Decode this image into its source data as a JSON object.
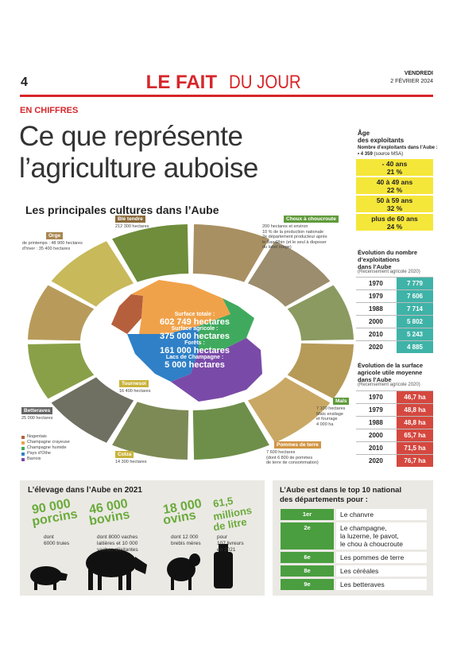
{
  "header": {
    "page_number": "4",
    "title_bold": "LE FAIT",
    "title_light": "DU JOUR",
    "day": "VENDREDI",
    "date": "2 FÉVRIER 2024"
  },
  "kicker": "EN CHIFFRES",
  "headline": [
    "Ce que représente",
    "l’agriculture auboise"
  ],
  "map_section": {
    "title": "Les principales cultures dans l’Aube",
    "center": [
      {
        "label": "Surface totale :",
        "value": "602 749 hectares"
      },
      {
        "label": "Surface agricole :",
        "value": "375 000 hectares"
      },
      {
        "label": "Forêts :",
        "value": "161 000 hectares"
      },
      {
        "label": "Lacs de Champagne :",
        "value": "5 000 hectares"
      }
    ],
    "crops": [
      {
        "name": "Blé tendre",
        "detail": [
          "212 300 hectares"
        ]
      },
      {
        "name": "Orge",
        "detail": [
          "de printemps : 48 900 hectares",
          "d’hiver : 35 400 hectares"
        ]
      },
      {
        "name": "Choux à choucroute",
        "detail": [
          "200 hectares et environ",
          "10 % de la production nationale",
          "2e département producteur après",
          "le Bas-Rhin (et le seul à disposer",
          "du label rouge)"
        ]
      },
      {
        "name": "Tournesol",
        "detail": [
          "16 400 hectares"
        ]
      },
      {
        "name": "Betteraves",
        "detail": [
          "25 000 hectares"
        ]
      },
      {
        "name": "Colza",
        "detail": [
          "14 300 hectares"
        ]
      },
      {
        "name": "Pommes de terre",
        "detail": [
          "7 600 hectares",
          "(dont 6 800 de pommes",
          "de terre de consommation)"
        ]
      },
      {
        "name": "Maïs",
        "detail": [
          "7 100 hectares",
          "Maïs ensilage",
          "et fourrage",
          "4 000 ha"
        ]
      }
    ],
    "legend": [
      "Nogentais",
      "Champagne crayeuse",
      "Champagne humide",
      "Pays d’Othe",
      "Barrois"
    ]
  },
  "age": {
    "title": [
      "Âge",
      "des exploitants"
    ],
    "subtitle": "Nombre d’exploitants dans l’Aube :",
    "total": "• 4 359",
    "source": "(source MSA)",
    "rows": [
      {
        "range": "- 40 ans",
        "share": "21 %"
      },
      {
        "range": "40 à 49 ans",
        "share": "22 %"
      },
      {
        "range": "50 à 59 ans",
        "share": "32 %"
      },
      {
        "range": "plus de 60 ans",
        "share": "24 %"
      }
    ]
  },
  "farms": {
    "title": [
      "Évolution du nombre",
      "d’exploitations",
      "dans l’Aube"
    ],
    "source": "(Recensement agricole 2020)",
    "rows": [
      [
        "1970",
        "7 779"
      ],
      [
        "1979",
        "7 606"
      ],
      [
        "1988",
        "7 714"
      ],
      [
        "2000",
        "5 802"
      ],
      [
        "2010",
        "5 243"
      ],
      [
        "2020",
        "4 885"
      ]
    ]
  },
  "surface": {
    "title": [
      "Évolution de la surface",
      "agricole utile moyenne",
      "dans l’Aube"
    ],
    "source": "(Recensement agricole 2020)",
    "rows": [
      [
        "1970",
        "46,7 ha"
      ],
      [
        "1979",
        "48,8 ha"
      ],
      [
        "1988",
        "48,8 ha"
      ],
      [
        "2000",
        "65,7 ha"
      ],
      [
        "2010",
        "71,5 ha"
      ],
      [
        "2020",
        "76,7 ha"
      ]
    ]
  },
  "livestock": {
    "title": "L’élevage dans l’Aube en 2021",
    "items": [
      {
        "figure": [
          "90 000",
          "porcins"
        ],
        "detail": [
          "dont",
          "6000 truies"
        ]
      },
      {
        "figure": [
          "46 000",
          "bovins"
        ],
        "detail": [
          "dont 8000 vaches",
          "laitières et 10 000",
          "vaches allaitantes"
        ]
      },
      {
        "figure": [
          "18 000",
          "ovins"
        ],
        "detail": [
          "dont 12 000",
          "brebis mères"
        ]
      },
      {
        "figure": [
          "61,5",
          "millions",
          "de litre"
        ],
        "detail": [
          "pour",
          "107 livreurs",
          "en 2021"
        ]
      }
    ]
  },
  "top10": {
    "title": [
      "L’Aube est dans le top 10 national",
      "des départements pour :"
    ],
    "rows": [
      {
        "rank": "1er",
        "item": [
          "Le chanvre"
        ]
      },
      {
        "rank": "2e",
        "item": [
          "Le champagne,",
          "la luzerne, le pavot,",
          "le chou à choucroute"
        ]
      },
      {
        "rank": "6e",
        "item": [
          "Les pommes de terre"
        ]
      },
      {
        "rank": "8e",
        "item": [
          "Les céréales"
        ]
      },
      {
        "rank": "9e",
        "item": [
          "Les betteraves"
        ]
      }
    ]
  }
}
